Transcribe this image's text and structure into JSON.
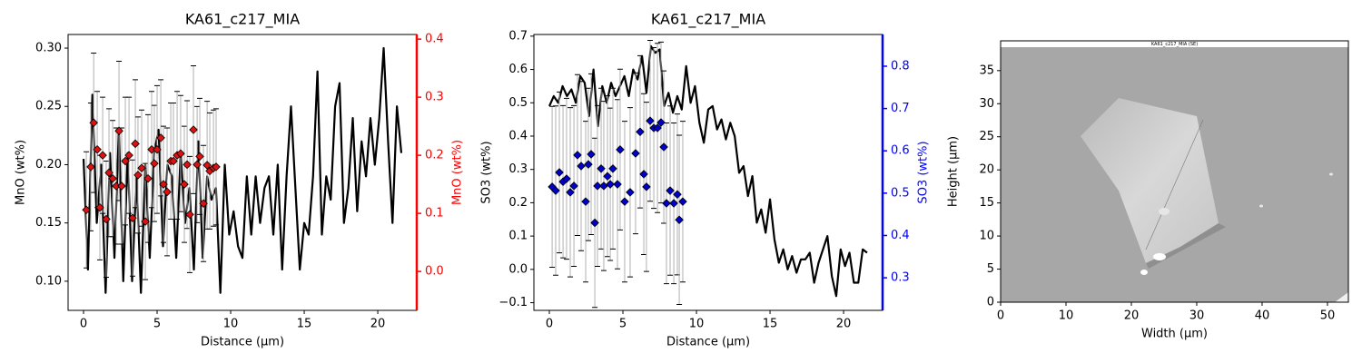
{
  "chart_data": [
    {
      "type": "combo",
      "title": "KA61_c217_MIA",
      "xlabel": "Distance (µm)",
      "ylabel": "MnO (wt%)",
      "y2label": "MnO (wt%)",
      "y2color": "#ff0000",
      "xlim": [
        -1.05,
        22.65
      ],
      "ylim": [
        0.075,
        0.3117
      ],
      "y2lim": [
        -0.067,
        0.408
      ],
      "xticks": [
        0,
        5,
        10,
        15,
        20
      ],
      "yticks": [
        {
          "value": 0.1,
          "label": "0.10"
        },
        {
          "value": 0.15,
          "label": "0.15"
        },
        {
          "value": 0.2,
          "label": "0.20"
        },
        {
          "value": 0.25,
          "label": "0.25"
        },
        {
          "value": 0.3,
          "label": "0.30"
        }
      ],
      "y2ticks": [
        {
          "value": 0,
          "label": "0.0"
        },
        0.1,
        0.2,
        0.3,
        0.4
      ],
      "series": [
        {
          "type": "line",
          "color": "#000000",
          "x": [
            0,
            0.3,
            0.6,
            0.9,
            1.2,
            1.5,
            1.8,
            2.1,
            2.4,
            2.7,
            3,
            3.3,
            3.6,
            3.9,
            4.2,
            4.5,
            4.8,
            5.1,
            5.4,
            5.7,
            6,
            6.3,
            6.6,
            6.9,
            7.2,
            7.5,
            7.8,
            8.1,
            8.4,
            8.7,
            9,
            9.3,
            9.6,
            9.9,
            10.2,
            10.5,
            10.8,
            11.1,
            11.4,
            11.7,
            12,
            12.3,
            12.6,
            12.9,
            13.2,
            13.5,
            13.8,
            14.1,
            14.4,
            14.7,
            15,
            15.3,
            15.6,
            15.9,
            16.2,
            16.5,
            16.8,
            17.1,
            17.4,
            17.7,
            18,
            18.3,
            18.6,
            18.9,
            19.2,
            19.5,
            19.8,
            20.1,
            20.4,
            20.7,
            21,
            21.3,
            21.6
          ],
          "values": [
            0.205,
            0.11,
            0.26,
            0.15,
            0.2,
            0.09,
            0.21,
            0.12,
            0.23,
            0.1,
            0.21,
            0.1,
            0.19,
            0.09,
            0.2,
            0.12,
            0.21,
            0.23,
            0.13,
            0.2,
            0.19,
            0.12,
            0.21,
            0.15,
            0.18,
            0.11,
            0.22,
            0.12,
            0.19,
            0.17,
            0.18,
            0.09,
            0.2,
            0.14,
            0.16,
            0.13,
            0.12,
            0.19,
            0.14,
            0.19,
            0.15,
            0.18,
            0.19,
            0.14,
            0.2,
            0.11,
            0.19,
            0.25,
            0.18,
            0.11,
            0.15,
            0.14,
            0.19,
            0.28,
            0.14,
            0.19,
            0.17,
            0.25,
            0.27,
            0.15,
            0.18,
            0.24,
            0.16,
            0.22,
            0.19,
            0.24,
            0.2,
            0.24,
            0.3,
            0.22,
            0.15,
            0.25,
            0.21
          ]
        },
        {
          "type": "scatter",
          "axis": "y2",
          "color": "#dd1111",
          "x": [
            0.19,
            0.49,
            0.69,
            0.93,
            1.11,
            1.3,
            1.54,
            1.73,
            1.98,
            2.22,
            2.41,
            2.59,
            2.84,
            3.09,
            3.33,
            3.52,
            3.7,
            3.95,
            4.2,
            4.38,
            4.63,
            4.81,
            5,
            5.25,
            5.43,
            5.68,
            5.93,
            6.11,
            6.36,
            6.6,
            6.85,
            7.04,
            7.22,
            7.47,
            7.72,
            7.9,
            8.15,
            8.4,
            8.58,
            8.83,
            9.01
          ],
          "values": [
            0.106,
            0.18,
            0.256,
            0.21,
            0.11,
            0.2,
            0.09,
            0.17,
            0.16,
            0.147,
            0.242,
            0.147,
            0.19,
            0.2,
            0.092,
            0.22,
            0.166,
            0.178,
            0.086,
            0.16,
            0.21,
            0.186,
            0.21,
            0.23,
            0.15,
            0.137,
            0.19,
            0.19,
            0.2,
            0.203,
            0.15,
            0.184,
            0.098,
            0.244,
            0.184,
            0.198,
            0.117,
            0.183,
            0.173,
            0.178,
            0.18
          ],
          "errors": [
            0.1,
            0.11,
            0.12,
            0.1,
            0.09,
            0.1,
            0.1,
            0.11,
            0.1,
            0.1,
            0.12,
            0.1,
            0.11,
            0.1,
            0.1,
            0.11,
            0.1,
            0.1,
            0.1,
            0.11,
            0.1,
            0.1,
            0.11,
            0.1,
            0.1,
            0.11,
            0.1,
            0.1,
            0.11,
            0.1,
            0.1,
            0.11,
            0.1,
            0.11,
            0.1,
            0.1,
            0.1,
            0.11,
            0.1,
            0.1,
            0.1
          ]
        }
      ]
    },
    {
      "type": "combo",
      "title": "KA61_c217_MIA",
      "xlabel": "Distance (µm)",
      "ylabel": "SO3 (wt%)",
      "y2label": "SO3 (wt%)",
      "y2color": "#0000ff",
      "xlim": [
        -1.05,
        22.65
      ],
      "ylim": [
        -0.123,
        0.705
      ],
      "y2lim": [
        0.223,
        0.875
      ],
      "xticks": [
        0,
        5,
        10,
        15,
        20
      ],
      "yticks": [
        {
          "value": -0.1,
          "label": "−0.1"
        },
        {
          "value": 0,
          "label": "0.0"
        },
        0.1,
        0.2,
        0.3,
        0.4,
        0.5,
        0.6,
        0.7
      ],
      "y2ticks": [
        0.3,
        0.4,
        0.5,
        0.6,
        0.7,
        0.8
      ],
      "series": [
        {
          "type": "line",
          "color": "#000000",
          "x": [
            0,
            0.3,
            0.6,
            0.9,
            1.2,
            1.5,
            1.8,
            2.1,
            2.4,
            2.7,
            3,
            3.3,
            3.6,
            3.9,
            4.2,
            4.5,
            4.8,
            5.1,
            5.4,
            5.7,
            6,
            6.3,
            6.6,
            6.9,
            7.2,
            7.5,
            7.8,
            8.1,
            8.4,
            8.7,
            9,
            9.3,
            9.6,
            9.9,
            10.2,
            10.5,
            10.8,
            11.1,
            11.4,
            11.7,
            12,
            12.3,
            12.6,
            12.9,
            13.2,
            13.5,
            13.8,
            14.1,
            14.4,
            14.7,
            15,
            15.3,
            15.6,
            15.9,
            16.2,
            16.5,
            16.8,
            17.1,
            17.4,
            17.7,
            18,
            18.3,
            18.6,
            18.9,
            19.2,
            19.5,
            19.8,
            20.1,
            20.4,
            20.7,
            21,
            21.3,
            21.6
          ],
          "values": [
            0.49,
            0.52,
            0.5,
            0.55,
            0.52,
            0.54,
            0.5,
            0.58,
            0.56,
            0.46,
            0.6,
            0.43,
            0.55,
            0.5,
            0.56,
            0.52,
            0.55,
            0.58,
            0.52,
            0.6,
            0.57,
            0.64,
            0.53,
            0.67,
            0.65,
            0.66,
            0.49,
            0.53,
            0.47,
            0.52,
            0.48,
            0.61,
            0.5,
            0.55,
            0.44,
            0.38,
            0.48,
            0.49,
            0.42,
            0.45,
            0.39,
            0.44,
            0.4,
            0.29,
            0.31,
            0.22,
            0.28,
            0.14,
            0.18,
            0.11,
            0.21,
            0.09,
            0.02,
            0.06,
            0,
            0.04,
            -0.01,
            0.03,
            0.03,
            0.05,
            -0.04,
            0.02,
            0.06,
            0.1,
            -0.02,
            -0.08,
            0.06,
            0.01,
            0.05,
            -0.04,
            -0.04,
            0.06,
            0.05
          ]
        },
        {
          "type": "scatter",
          "axis": "y2",
          "color": "#0000cc",
          "x": [
            0.19,
            0.43,
            0.68,
            0.93,
            1.17,
            1.42,
            1.67,
            1.91,
            2.16,
            2.47,
            2.65,
            2.84,
            3.09,
            3.27,
            3.52,
            3.7,
            3.95,
            4.14,
            4.32,
            4.63,
            4.81,
            5.12,
            5.49,
            5.86,
            6.17,
            6.42,
            6.6,
            6.85,
            7.1,
            7.35,
            7.59,
            7.78,
            7.96,
            8.21,
            8.46,
            8.7,
            8.83,
            9.07
          ],
          "values": [
            0.515,
            0.506,
            0.549,
            0.527,
            0.534,
            0.502,
            0.517,
            0.59,
            0.564,
            0.48,
            0.568,
            0.592,
            0.43,
            0.517,
            0.558,
            0.517,
            0.54,
            0.521,
            0.558,
            0.521,
            0.603,
            0.48,
            0.502,
            0.594,
            0.645,
            0.545,
            0.515,
            0.671,
            0.654,
            0.654,
            0.667,
            0.609,
            0.476,
            0.506,
            0.476,
            0.497,
            0.437,
            0.48
          ],
          "errors": [
            0.19,
            0.2,
            0.19,
            0.18,
            0.19,
            0.2,
            0.19,
            0.19,
            0.2,
            0.19,
            0.18,
            0.19,
            0.2,
            0.19,
            0.19,
            0.2,
            0.19,
            0.18,
            0.19,
            0.2,
            0.19,
            0.19,
            0.2,
            0.19,
            0.18,
            0.19,
            0.2,
            0.19,
            0.19,
            0.2,
            0.19,
            0.18,
            0.19,
            0.2,
            0.19,
            0.19,
            0.2,
            0.19
          ]
        }
      ]
    },
    {
      "type": "image",
      "title": "KA61_c217_MIA (SE)",
      "xlabel": "Width (µm)",
      "ylabel": "Height (µm)",
      "xlim": [
        0,
        53.2
      ],
      "ylim": [
        0,
        39.5
      ],
      "xticks": [
        0,
        10,
        20,
        30,
        40,
        50
      ],
      "yticks": [
        0,
        5,
        10,
        15,
        20,
        25,
        30,
        35
      ]
    }
  ]
}
